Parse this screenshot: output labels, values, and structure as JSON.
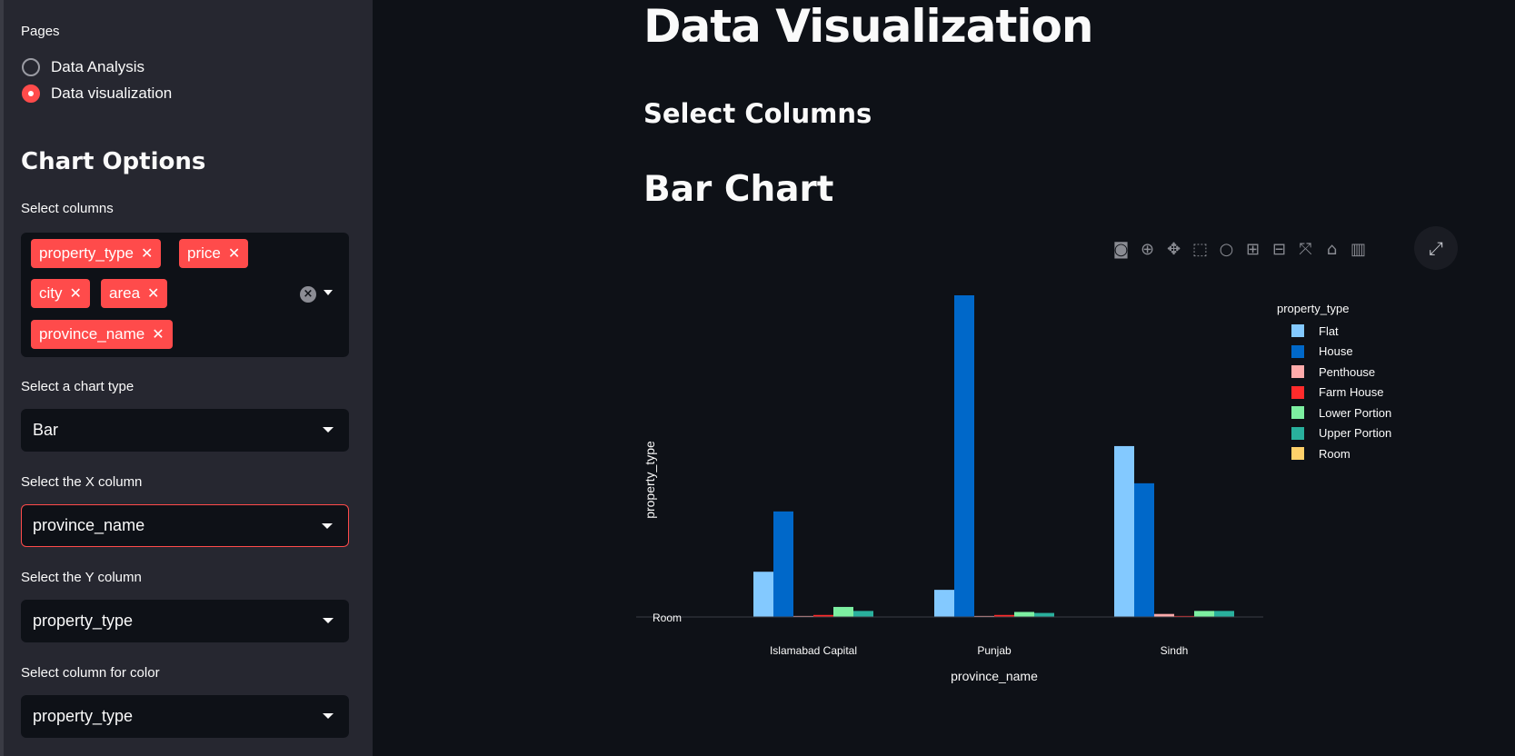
{
  "sidebar": {
    "pages_label": "Pages",
    "pages": [
      {
        "label": "Data Analysis",
        "selected": false
      },
      {
        "label": "Data visualization",
        "selected": true
      }
    ],
    "chart_options_title": "Chart Options",
    "select_columns_label": "Select columns",
    "selected_columns": [
      "property_type",
      "price",
      "city",
      "area",
      "province_name"
    ],
    "chart_type_label": "Select a chart type",
    "chart_type_value": "Bar",
    "x_column_label": "Select the X column",
    "x_column_value": "province_name",
    "y_column_label": "Select the Y column",
    "y_column_value": "property_type",
    "color_column_label": "Select column for color",
    "color_column_value": "property_type"
  },
  "main": {
    "title": "Data Visualization",
    "subtitle": "Select Columns",
    "chart_heading": "Bar Chart"
  },
  "toolbar_icons": [
    "camera-icon",
    "zoom-icon",
    "pan-icon",
    "box-select-icon",
    "lasso-icon",
    "zoom-in-icon",
    "zoom-out-icon",
    "autoscale-icon",
    "reset-axes-icon",
    "plotly-logo-icon"
  ],
  "colors": {
    "accent": "#ff4b4b",
    "sidebar_bg": "#262730",
    "main_bg": "#0e1117"
  },
  "chart_data": {
    "type": "bar",
    "xlabel": "province_name",
    "ylabel": "property_type",
    "y_tick_label": "Room",
    "categories": [
      "Islamabad Capital",
      "Punjab",
      "Sindh"
    ],
    "legend_title": "property_type",
    "legend_position": "top-right",
    "series": [
      {
        "name": "Flat",
        "color": "#83c9ff",
        "values": [
          45,
          27,
          170
        ]
      },
      {
        "name": "House",
        "color": "#0068c9",
        "values": [
          105,
          320,
          133
        ]
      },
      {
        "name": "Penthouse",
        "color": "#ffabab",
        "values": [
          1,
          1,
          3
        ]
      },
      {
        "name": "Farm House",
        "color": "#ff2b2b",
        "values": [
          2,
          2,
          1
        ]
      },
      {
        "name": "Lower Portion",
        "color": "#7defa1",
        "values": [
          10,
          5,
          6
        ]
      },
      {
        "name": "Upper Portion",
        "color": "#29b09d",
        "values": [
          6,
          4,
          6
        ]
      },
      {
        "name": "Room",
        "color": "#ffd16a",
        "values": [
          0,
          0,
          0
        ]
      }
    ]
  }
}
